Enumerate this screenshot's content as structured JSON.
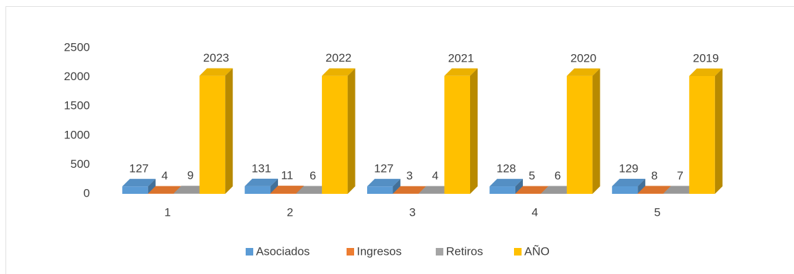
{
  "chart_data": {
    "type": "bar3d",
    "categories": [
      "1",
      "2",
      "3",
      "4",
      "5"
    ],
    "series": [
      {
        "name": "Asociados",
        "color": "#5b9bd5",
        "values": [
          127,
          131,
          127,
          128,
          129
        ]
      },
      {
        "name": "Ingresos",
        "color": "#ed7d31",
        "values": [
          4,
          11,
          3,
          5,
          8
        ]
      },
      {
        "name": "Retiros",
        "color": "#a5a5a5",
        "values": [
          9,
          6,
          4,
          6,
          7
        ]
      },
      {
        "name": "AÑO",
        "color": "#ffc000",
        "values": [
          2023,
          2022,
          2021,
          2020,
          2019
        ]
      }
    ],
    "ylim": [
      0,
      2500
    ],
    "yticks": [
      0,
      500,
      1000,
      1500,
      2000,
      2500
    ],
    "grid": false,
    "legend": "bottom"
  }
}
